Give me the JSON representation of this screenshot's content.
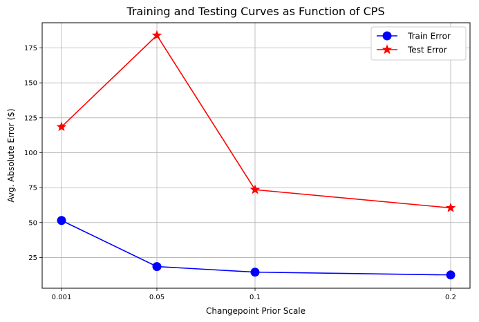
{
  "chart_data": {
    "type": "line",
    "title": "Training and Testing Curves as Function of CPS",
    "xlabel": "Changepoint Prior Scale",
    "ylabel": "Avg. Absolute Error ($)",
    "categories": [
      "0.001",
      "0.05",
      "0.1",
      "0.2"
    ],
    "y_ticks": [
      25,
      50,
      75,
      100,
      125,
      150,
      175
    ],
    "ylim": [
      3,
      193
    ],
    "grid": true,
    "legend_position": "top-right",
    "series": [
      {
        "name": "Train Error",
        "values": [
          51.5,
          18.5,
          14.5,
          12.5
        ],
        "color": "#0000ff",
        "marker": "circle"
      },
      {
        "name": "Test Error",
        "values": [
          118.5,
          184,
          73.5,
          60.5
        ],
        "color": "#ff0000",
        "marker": "star"
      }
    ]
  }
}
